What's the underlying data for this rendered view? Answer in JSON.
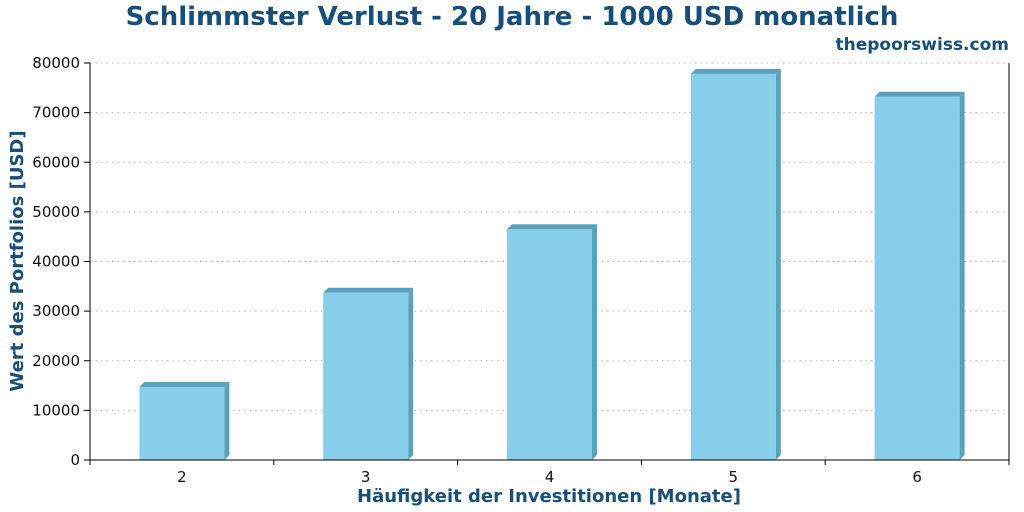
{
  "chart_data": {
    "type": "bar",
    "title": "Schlimmster Verlust - 20 Jahre - 1000 USD monatlich",
    "watermark": "thepoorswiss.com",
    "xlabel": "Häufigkeit der Investitionen [Monate]",
    "ylabel": "Wert des Portfolios [USD]",
    "categories": [
      "2",
      "3",
      "4",
      "5",
      "6"
    ],
    "values": [
      14700,
      33700,
      46500,
      77800,
      73200
    ],
    "ylim": [
      0,
      80000
    ],
    "yticks": [
      "0",
      "10000",
      "20000",
      "30000",
      "40000",
      "50000",
      "60000",
      "70000",
      "80000"
    ],
    "grid": true,
    "colors": {
      "bar": "#87ceeb",
      "bar_shade": "#5ba1bd",
      "text": "#174f7a"
    }
  }
}
